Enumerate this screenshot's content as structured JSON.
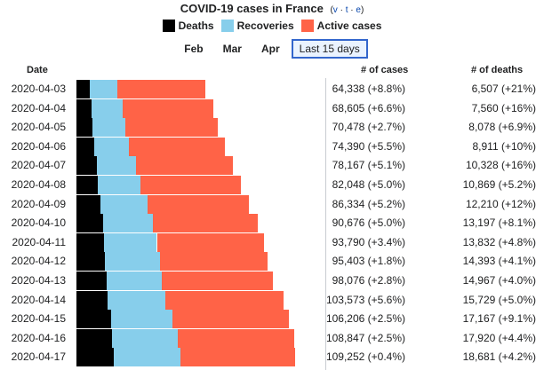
{
  "header": {
    "title": "COVID-19 cases in France",
    "vte": {
      "open": "(",
      "v": "v",
      "t": "t",
      "e": "e",
      "close": ")",
      "sep": "·"
    }
  },
  "legend": [
    {
      "label": "Deaths",
      "color": "#000000"
    },
    {
      "label": "Recoveries",
      "color": "#87ceeb"
    },
    {
      "label": "Active cases",
      "color": "#ff6347"
    }
  ],
  "tabs": [
    {
      "label": "Feb",
      "active": false
    },
    {
      "label": "Mar",
      "active": false
    },
    {
      "label": "Apr",
      "active": false
    },
    {
      "label": "Last 15 days",
      "active": true
    }
  ],
  "columns": {
    "date": "Date",
    "cases": "# of cases",
    "deaths": "# of deaths"
  },
  "chart_data": {
    "type": "bar",
    "stacked": true,
    "orientation": "horizontal",
    "title": "COVID-19 cases in France",
    "series_names": [
      "Deaths",
      "Recoveries",
      "Active cases"
    ],
    "rows": [
      {
        "date": "2020-04-03",
        "cases": 64338,
        "cases_label": "64,338 (+8.8%)",
        "deaths": 6507,
        "deaths_label": "6,507 (+21%)",
        "recovered": 14008
      },
      {
        "date": "2020-04-04",
        "cases": 68605,
        "cases_label": "68,605 (+6.6%)",
        "deaths": 7560,
        "deaths_label": "7,560 (+16%)",
        "recovered": 15438
      },
      {
        "date": "2020-04-05",
        "cases": 70478,
        "cases_label": "70,478 (+2.7%)",
        "deaths": 8078,
        "deaths_label": "8,078 (+6.9%)",
        "recovered": 16183
      },
      {
        "date": "2020-04-06",
        "cases": 74390,
        "cases_label": "74,390 (+5.5%)",
        "deaths": 8911,
        "deaths_label": "8,911 (+10%)",
        "recovered": 17250
      },
      {
        "date": "2020-04-07",
        "cases": 78167,
        "cases_label": "78,167 (+5.1%)",
        "deaths": 10328,
        "deaths_label": "10,328 (+16%)",
        "recovered": 19337
      },
      {
        "date": "2020-04-08",
        "cases": 82048,
        "cases_label": "82,048 (+5.0%)",
        "deaths": 10869,
        "deaths_label": "10,869 (+5.2%)",
        "recovered": 21254
      },
      {
        "date": "2020-04-09",
        "cases": 86334,
        "cases_label": "86,334 (+5.2%)",
        "deaths": 12210,
        "deaths_label": "12,210 (+12%)",
        "recovered": 23206
      },
      {
        "date": "2020-04-10",
        "cases": 90676,
        "cases_label": "90,676 (+5.0%)",
        "deaths": 13197,
        "deaths_label": "13,197 (+8.1%)",
        "recovered": 24932
      },
      {
        "date": "2020-04-11",
        "cases": 93790,
        "cases_label": "93,790 (+3.4%)",
        "deaths": 13832,
        "deaths_label": "13,832 (+4.8%)",
        "recovered": 26391
      },
      {
        "date": "2020-04-12",
        "cases": 95403,
        "cases_label": "95,403 (+1.8%)",
        "deaths": 14393,
        "deaths_label": "14,393 (+4.1%)",
        "recovered": 27186
      },
      {
        "date": "2020-04-13",
        "cases": 98076,
        "cases_label": "98,076 (+2.8%)",
        "deaths": 14967,
        "deaths_label": "14,967 (+4.0%)",
        "recovered": 27718
      },
      {
        "date": "2020-04-14",
        "cases": 103573,
        "cases_label": "103,573 (+5.6%)",
        "deaths": 15729,
        "deaths_label": "15,729 (+5.0%)",
        "recovered": 28805
      },
      {
        "date": "2020-04-15",
        "cases": 106206,
        "cases_label": "106,206 (+2.5%)",
        "deaths": 17167,
        "deaths_label": "17,167 (+9.1%)",
        "recovered": 30955
      },
      {
        "date": "2020-04-16",
        "cases": 108847,
        "cases_label": "108,847 (+2.5%)",
        "deaths": 17920,
        "deaths_label": "17,920 (+4.4%)",
        "recovered": 32812
      },
      {
        "date": "2020-04-17",
        "cases": 109252,
        "cases_label": "109,252 (+0.4%)",
        "deaths": 18681,
        "deaths_label": "18,681 (+4.2%)",
        "recovered": 33327
      }
    ],
    "xlim": [
      0,
      120000
    ]
  }
}
